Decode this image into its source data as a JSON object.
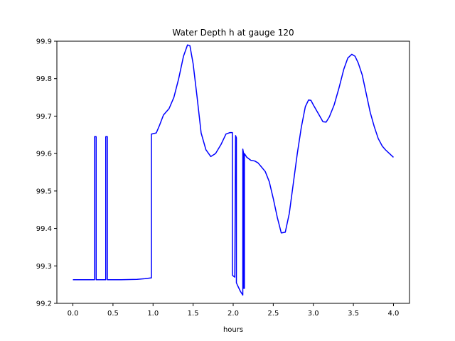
{
  "chart_data": {
    "type": "line",
    "title": "Water Depth h at gauge 120",
    "xlabel": "hours",
    "ylabel": "",
    "xlim": [
      -0.2,
      4.2
    ],
    "ylim": [
      99.2,
      99.9
    ],
    "xticks": [
      0.0,
      0.5,
      1.0,
      1.5,
      2.0,
      2.5,
      3.0,
      3.5,
      4.0
    ],
    "xtick_labels": [
      "0.0",
      "0.5",
      "1.0",
      "1.5",
      "2.0",
      "2.5",
      "3.0",
      "3.5",
      "4.0"
    ],
    "yticks": [
      99.2,
      99.3,
      99.4,
      99.5,
      99.6,
      99.7,
      99.8,
      99.9
    ],
    "ytick_labels": [
      "99.2",
      "99.3",
      "99.4",
      "99.5",
      "99.6",
      "99.7",
      "99.8",
      "99.9"
    ],
    "grid": false,
    "legend": false,
    "series": [
      {
        "color": "#0000ff",
        "x": [
          0.0,
          0.27,
          0.27,
          0.29,
          0.29,
          0.41,
          0.41,
          0.43,
          0.43,
          0.6,
          0.8,
          0.9,
          0.98,
          0.98,
          1.04,
          1.08,
          1.13,
          1.2,
          1.26,
          1.32,
          1.38,
          1.43,
          1.46,
          1.5,
          1.55,
          1.6,
          1.66,
          1.72,
          1.78,
          1.85,
          1.91,
          1.96,
          1.99,
          1.99,
          2.02,
          2.02,
          2.03,
          2.03,
          2.04,
          2.04,
          2.05,
          2.05,
          2.09,
          2.12,
          2.12,
          2.13,
          2.13,
          2.14,
          2.14,
          2.17,
          2.22,
          2.27,
          2.31,
          2.35,
          2.4,
          2.45,
          2.5,
          2.55,
          2.6,
          2.65,
          2.7,
          2.75,
          2.8,
          2.85,
          2.9,
          2.94,
          2.97,
          3.0,
          3.04,
          3.08,
          3.12,
          3.16,
          3.2,
          3.26,
          3.32,
          3.38,
          3.43,
          3.48,
          3.52,
          3.56,
          3.61,
          3.66,
          3.71,
          3.76,
          3.81,
          3.86,
          3.9,
          3.95,
          4.0
        ],
        "y": [
          99.263,
          99.263,
          99.645,
          99.645,
          99.263,
          99.263,
          99.645,
          99.645,
          99.263,
          99.263,
          99.264,
          99.266,
          99.268,
          99.652,
          99.655,
          99.675,
          99.703,
          99.72,
          99.75,
          99.8,
          99.86,
          99.89,
          99.888,
          99.84,
          99.75,
          99.655,
          99.61,
          99.592,
          99.6,
          99.625,
          99.652,
          99.656,
          99.656,
          99.275,
          99.27,
          99.27,
          99.648,
          99.648,
          99.642,
          99.255,
          99.25,
          99.25,
          99.232,
          99.222,
          99.612,
          99.6,
          99.24,
          99.24,
          99.6,
          99.59,
          99.582,
          99.58,
          99.575,
          99.565,
          99.552,
          99.525,
          99.48,
          99.43,
          99.388,
          99.39,
          99.44,
          99.52,
          99.6,
          99.67,
          99.725,
          99.743,
          99.742,
          99.73,
          99.715,
          99.7,
          99.685,
          99.684,
          99.698,
          99.73,
          99.775,
          99.825,
          99.855,
          99.865,
          99.86,
          99.842,
          99.81,
          99.76,
          99.71,
          99.672,
          99.64,
          99.62,
          99.61,
          99.6,
          99.59
        ]
      }
    ]
  }
}
